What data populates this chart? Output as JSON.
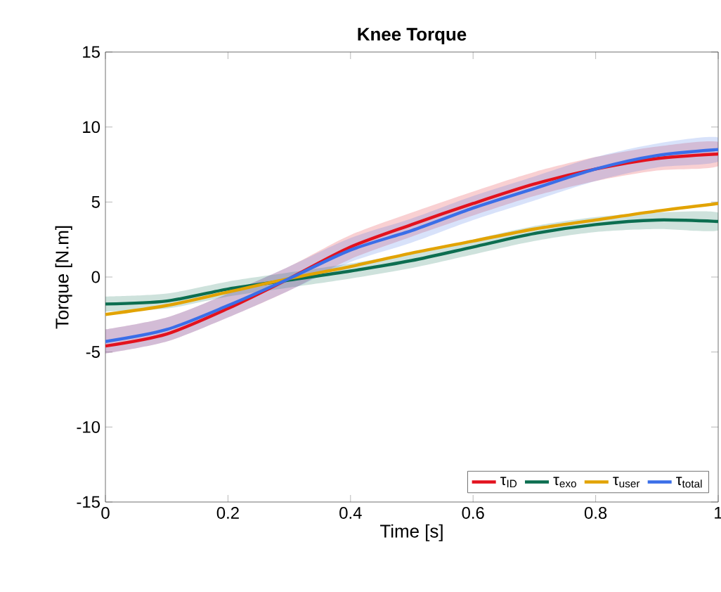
{
  "chart_data": {
    "type": "line",
    "title": "Knee Torque",
    "xlabel": "Time [s]",
    "ylabel": "Torque [N.m]",
    "x": [
      0,
      0.1,
      0.2,
      0.3,
      0.4,
      0.5,
      0.6,
      0.7,
      0.8,
      0.9,
      1.0
    ],
    "xlim": [
      0,
      1
    ],
    "ylim": [
      -15,
      15
    ],
    "xticks": [
      0,
      0.2,
      0.4,
      0.6,
      0.8,
      1
    ],
    "yticks": [
      -15,
      -10,
      -5,
      0,
      5,
      10,
      15
    ],
    "grid": false,
    "legend": "bottom right",
    "line_style": "solid",
    "marker": "none",
    "series": [
      {
        "name": "τ$_{ID}$",
        "color": "#e3121e",
        "values": [
          -4.6,
          -3.8,
          -2.1,
          -0.1,
          2.0,
          3.5,
          4.9,
          6.2,
          7.2,
          7.9,
          8.2
        ],
        "lower": [
          -5.1,
          -4.3,
          -2.7,
          -0.9,
          1.2,
          2.7,
          4.1,
          5.4,
          6.4,
          7.1,
          7.4
        ],
        "upper": [
          -3.5,
          -2.7,
          -1.1,
          0.7,
          2.8,
          4.3,
          5.7,
          7.0,
          8.0,
          8.7,
          9.0
        ]
      },
      {
        "name": "τ$_{exo}$",
        "color": "#0c6e50",
        "values": [
          -1.8,
          -1.6,
          -0.8,
          -0.2,
          0.4,
          1.1,
          2.0,
          2.9,
          3.5,
          3.8,
          3.7
        ],
        "lower": [
          -2.3,
          -2.1,
          -1.3,
          -0.7,
          -0.1,
          0.6,
          1.5,
          2.4,
          3.0,
          3.2,
          3.1
        ],
        "upper": [
          -1.3,
          -1.1,
          -0.3,
          0.3,
          0.9,
          1.6,
          2.5,
          3.4,
          4.0,
          4.3,
          4.3
        ]
      },
      {
        "name": "τ$_{user}$",
        "color": "#e2a300",
        "values": [
          -2.5,
          -1.9,
          -1.0,
          -0.1,
          0.7,
          1.6,
          2.4,
          3.2,
          3.8,
          4.4,
          4.9
        ]
      },
      {
        "name": "τ$_{total}$",
        "color": "#3a6ee8",
        "values": [
          -4.3,
          -3.5,
          -1.9,
          -0.1,
          1.8,
          3.1,
          4.6,
          5.9,
          7.2,
          8.1,
          8.5
        ],
        "lower": [
          -5.1,
          -4.3,
          -2.7,
          -0.9,
          1.0,
          2.3,
          3.8,
          5.1,
          6.4,
          7.3,
          7.7
        ],
        "upper": [
          -3.5,
          -2.7,
          -1.1,
          0.7,
          2.6,
          3.9,
          5.4,
          6.7,
          8.0,
          8.9,
          9.3
        ]
      }
    ]
  }
}
